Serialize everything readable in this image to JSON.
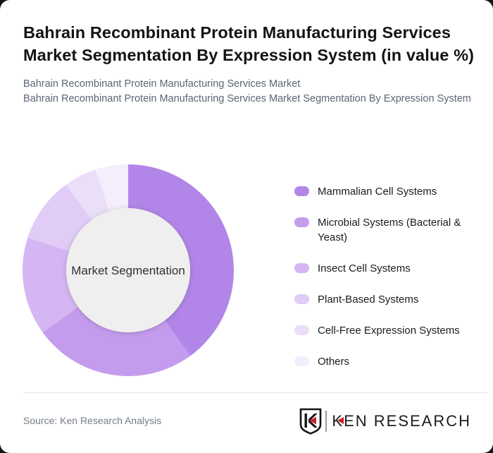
{
  "header": {
    "title": "Bahrain Recombinant Protein Manufacturing Services Market Segmentation By Expression System (in value %)",
    "subtitle1": "Bahrain Recombinant Protein Manufacturing Services Market",
    "subtitle2": "Bahrain Recombinant Protein Manufacturing Services Market Segmentation By Expression System"
  },
  "chart_data": {
    "type": "pie",
    "variant": "donut",
    "title": "Bahrain Recombinant Protein Manufacturing Services Market Segmentation By Expression System (in value %)",
    "center_label": "Market Segmentation",
    "unit": "%",
    "categories": [
      "Mammalian Cell Systems",
      "Microbial Systems (Bacterial & Yeast)",
      "Insect Cell Systems",
      "Plant-Based Systems",
      "Cell-Free Expression Systems",
      "Others"
    ],
    "values": [
      40,
      25,
      15,
      10,
      5,
      5
    ],
    "colors": [
      "#b286e8",
      "#c49cee",
      "#d4b6f2",
      "#e0ccf6",
      "#eadef9",
      "#f3edfc"
    ],
    "start_angle_deg": 0,
    "direction": "clockwise",
    "legend_position": "right",
    "inner_circle_color": "#efefef"
  },
  "footer": {
    "source": "Source: Ken Research Analysis",
    "logo_text": "KEN RESEARCH",
    "logo_red": "#cd2027"
  }
}
